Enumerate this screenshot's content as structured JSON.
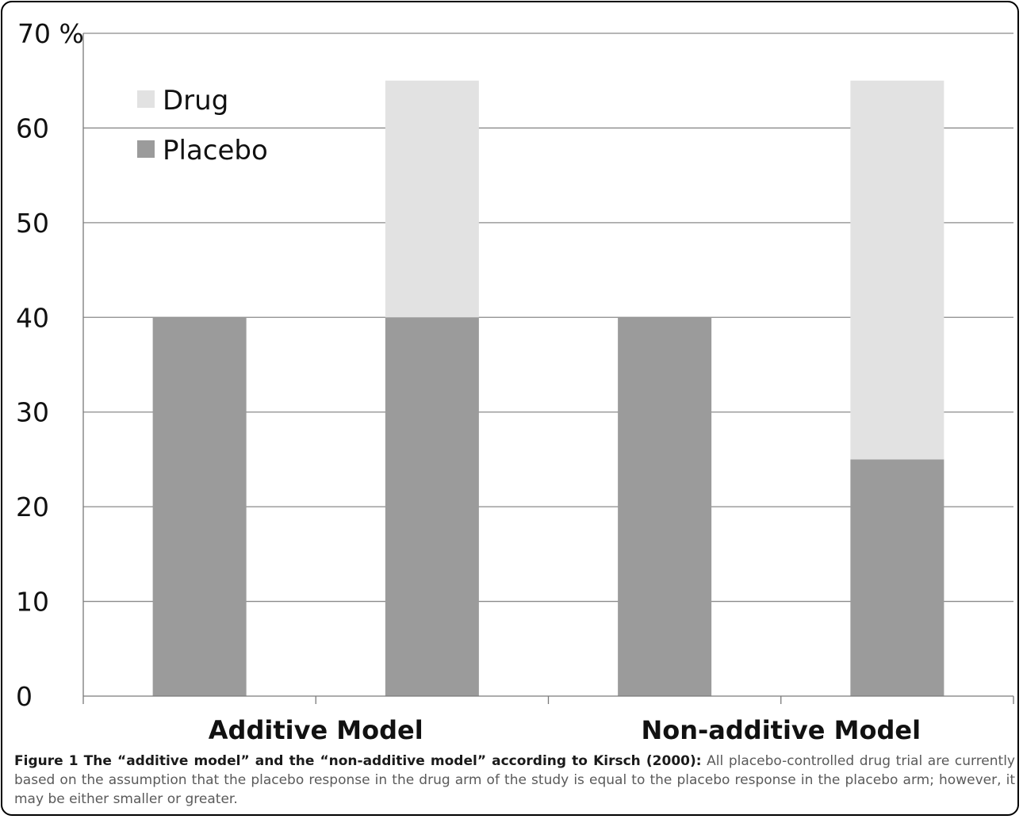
{
  "chart_data": {
    "type": "bar",
    "stacked": true,
    "categories": [
      "",
      "Additive Model",
      "",
      "Non-additive Model"
    ],
    "category_labels": [
      {
        "text": "Additive Model"
      },
      {
        "text": "Non-additive Model"
      }
    ],
    "series": [
      {
        "name": "Placebo",
        "values": [
          40,
          40,
          40,
          25
        ],
        "color": "#9b9b9b"
      },
      {
        "name": "Drug",
        "values": [
          0,
          25,
          0,
          40
        ],
        "color": "#e2e2e2"
      }
    ],
    "ylim": [
      0,
      70
    ],
    "yticks": [
      0,
      10,
      20,
      30,
      40,
      50,
      60,
      70
    ],
    "y_top_label": "70 %",
    "grid": true,
    "legend": "top-left",
    "legend_order": [
      "Drug",
      "Placebo"
    ]
  },
  "caption": {
    "label": "Figure 1 The “additive model” and the “non-additive model” according to Kirsch (2000):",
    "text": " All placebo-controlled drug trial are currently based on the assumption that the placebo response in the drug arm of the study is equal to the placebo response in the placebo arm; however, it may be either smaller or greater."
  }
}
